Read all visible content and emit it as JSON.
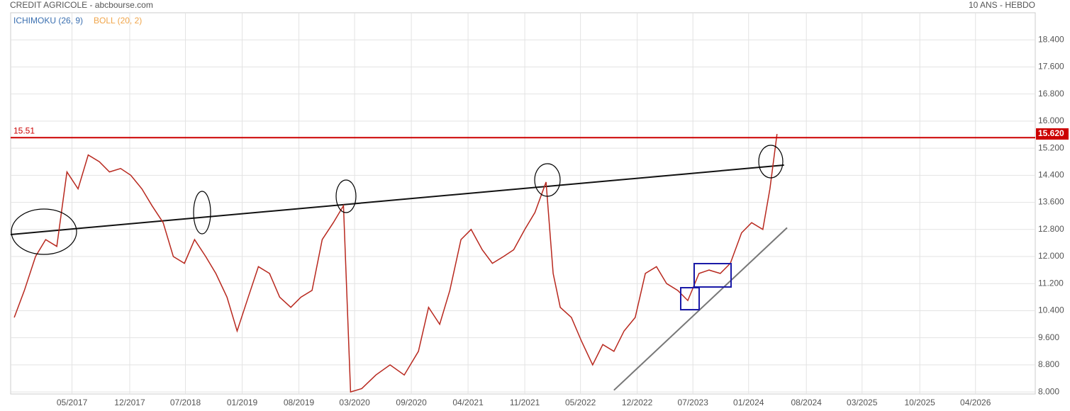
{
  "chart_data": {
    "type": "line",
    "title": "CREDIT AGRICOLE - abcbourse.com",
    "subtitle": "10 ANS - HEBDO",
    "indicators": [
      {
        "name": "ICHIMOKU (26, 9)",
        "color": "#3a6fb0"
      },
      {
        "name": "BOLL (20, 2)",
        "color": "#f0a54a"
      }
    ],
    "xlim": [
      2016.724,
      2026.84
    ],
    "ylim": [
      7.94,
      19.2
    ],
    "grid": true,
    "xticks": [
      {
        "value": 2017.33,
        "label": "05/2017"
      },
      {
        "value": 2017.9,
        "label": "12/2017"
      },
      {
        "value": 2018.45,
        "label": "07/2018"
      },
      {
        "value": 2019.01,
        "label": "01/2019"
      },
      {
        "value": 2019.57,
        "label": "08/2019"
      },
      {
        "value": 2020.12,
        "label": "03/2020"
      },
      {
        "value": 2020.68,
        "label": "09/2020"
      },
      {
        "value": 2021.24,
        "label": "04/2021"
      },
      {
        "value": 2021.8,
        "label": "11/2021"
      },
      {
        "value": 2022.35,
        "label": "05/2022"
      },
      {
        "value": 2022.91,
        "label": "12/2022"
      },
      {
        "value": 2023.46,
        "label": "07/2023"
      },
      {
        "value": 2024.01,
        "label": "01/2024"
      },
      {
        "value": 2024.58,
        "label": "08/2024"
      },
      {
        "value": 2025.13,
        "label": "03/2025"
      },
      {
        "value": 2025.7,
        "label": "10/2025"
      },
      {
        "value": 2026.25,
        "label": "04/2026"
      }
    ],
    "yticks": [
      {
        "value": 8.0,
        "label": "8.000"
      },
      {
        "value": 8.8,
        "label": "8.800"
      },
      {
        "value": 9.6,
        "label": "9.600"
      },
      {
        "value": 10.4,
        "label": "10.400"
      },
      {
        "value": 11.2,
        "label": "11.200"
      },
      {
        "value": 12.0,
        "label": "12.000"
      },
      {
        "value": 12.8,
        "label": "12.800"
      },
      {
        "value": 13.6,
        "label": "13.600"
      },
      {
        "value": 14.4,
        "label": "14.400"
      },
      {
        "value": 15.2,
        "label": "15.200"
      },
      {
        "value": 16.0,
        "label": "16.000"
      },
      {
        "value": 16.8,
        "label": "16.800"
      },
      {
        "value": 17.6,
        "label": "17.600"
      },
      {
        "value": 18.4,
        "label": "18.400"
      }
    ],
    "series": [
      {
        "color": "#b8281e",
        "x": [
          2016.76,
          2016.86,
          2016.97,
          2017.07,
          2017.18,
          2017.28,
          2017.39,
          2017.49,
          2017.6,
          2017.7,
          2017.81,
          2017.91,
          2018.02,
          2018.12,
          2018.23,
          2018.33,
          2018.44,
          2018.54,
          2018.65,
          2018.75,
          2018.86,
          2018.96,
          2019.07,
          2019.17,
          2019.28,
          2019.38,
          2019.49,
          2019.59,
          2019.7,
          2019.8,
          2019.91,
          2020.01,
          2020.08,
          2020.19,
          2020.33,
          2020.47,
          2020.61,
          2020.75,
          2020.85,
          2020.96,
          2021.06,
          2021.17,
          2021.27,
          2021.38,
          2021.48,
          2021.59,
          2021.69,
          2021.8,
          2021.9,
          2022.01,
          2022.08,
          2022.15,
          2022.26,
          2022.36,
          2022.47,
          2022.57,
          2022.68,
          2022.78,
          2022.89,
          2022.99,
          2023.1,
          2023.2,
          2023.31,
          2023.41,
          2023.52,
          2023.62,
          2023.73,
          2023.83,
          2023.94,
          2024.04,
          2024.15,
          2024.22,
          2024.29
        ],
        "values": [
          10.2,
          11.0,
          12.0,
          12.5,
          12.3,
          14.5,
          14.0,
          15.0,
          14.8,
          14.5,
          14.6,
          14.4,
          14.0,
          13.5,
          13.0,
          12.0,
          11.8,
          12.5,
          12.0,
          11.5,
          10.8,
          9.8,
          10.8,
          11.7,
          11.5,
          10.8,
          10.5,
          10.8,
          11.0,
          12.5,
          13.0,
          13.5,
          8.0,
          8.1,
          8.5,
          8.8,
          8.5,
          9.2,
          10.5,
          10.0,
          11.0,
          12.5,
          12.8,
          12.2,
          11.8,
          12.0,
          12.2,
          12.8,
          13.3,
          14.2,
          11.5,
          10.5,
          10.2,
          9.5,
          8.8,
          9.4,
          9.2,
          9.8,
          10.2,
          11.5,
          11.7,
          11.2,
          11.0,
          10.7,
          11.5,
          11.6,
          11.5,
          11.8,
          12.7,
          13.0,
          12.8,
          14.0,
          15.62
        ]
      }
    ],
    "reference_line": {
      "value": 15.51,
      "color": "#cc0000"
    },
    "last_value": {
      "value": 15.62,
      "label": "15.620",
      "color": "#cc0000"
    },
    "trend_lines": [
      {
        "x": [
          2016.72,
          2024.36
        ],
        "values": [
          12.65,
          14.7
        ],
        "color": "#111111"
      },
      {
        "x": [
          2022.68,
          2024.39
        ],
        "values": [
          8.05,
          12.85
        ],
        "color": "#777777"
      }
    ]
  }
}
